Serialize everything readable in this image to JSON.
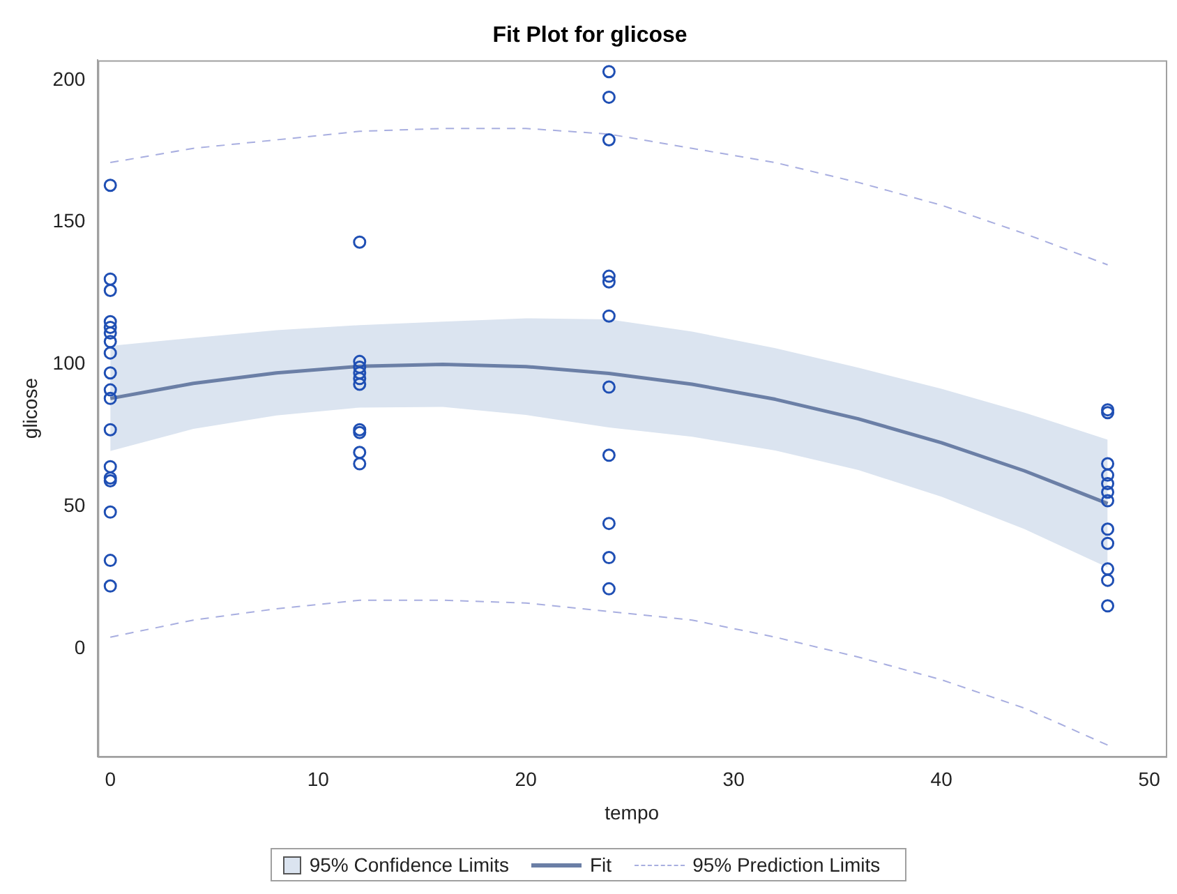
{
  "chart_data": {
    "type": "scatter",
    "title": "Fit Plot for glicose",
    "xlabel": "tempo",
    "ylabel": "glicose",
    "xlim": [
      -0.6,
      50.8
    ],
    "ylim": [
      -38,
      207
    ],
    "xticks": [
      0,
      10,
      20,
      30,
      40,
      50
    ],
    "yticks": [
      0,
      50,
      100,
      150,
      200
    ],
    "grid": false,
    "legend": "bottom",
    "marker": "circle",
    "annotations": [
      "95% Confidence Limits"
    ],
    "series": [
      {
        "type": "line",
        "name": "Fit",
        "color": "#6b7fa6",
        "line_style": "solid",
        "marker": "none",
        "x": [
          0,
          4,
          8,
          12,
          16,
          20,
          24,
          28,
          32,
          36,
          40,
          44,
          48
        ],
        "values": [
          88,
          93.3,
          97,
          99.3,
          100,
          99.2,
          96.8,
          93,
          87.7,
          80.8,
          72.4,
          62.5,
          51
        ],
        "lower": [
          69.5,
          77.3,
          82,
          84.8,
          85,
          82.2,
          77.8,
          74.5,
          69.7,
          62.8,
          53.4,
          42,
          28.5
        ],
        "upper": [
          106.5,
          109.3,
          112,
          113.8,
          115,
          116.2,
          115.8,
          111.5,
          105.7,
          98.8,
          91.4,
          83,
          73.5
        ]
      },
      {
        "type": "line",
        "name": "95% Prediction Limits",
        "color": "#a8aee0",
        "line_style": "dashed",
        "marker": "none",
        "x": [
          0,
          4,
          8,
          12,
          16,
          20,
          24,
          28,
          32,
          36,
          40,
          44,
          48
        ],
        "values": [
          171,
          176,
          179,
          182,
          183,
          183,
          181,
          176,
          171,
          164,
          156,
          146,
          135
        ]
      },
      {
        "type": "line",
        "color": "#a8aee0",
        "line_style": "dashed",
        "marker": "none",
        "x": [
          0,
          4,
          8,
          12,
          16,
          20,
          24,
          28,
          32,
          36,
          40,
          44,
          48
        ],
        "values": [
          4,
          10,
          14,
          17,
          17,
          16,
          13,
          10,
          4,
          -3,
          -11,
          -21,
          -34
        ]
      },
      {
        "color": "#1f4fb4",
        "x": [
          0,
          0,
          0,
          0,
          0,
          0,
          0,
          0,
          0,
          0,
          0,
          0,
          0,
          0,
          0,
          0,
          0,
          0,
          12,
          12,
          12,
          12,
          12,
          12,
          12,
          12,
          12,
          12,
          24,
          24,
          24,
          24,
          24,
          24,
          24,
          24,
          24,
          24,
          24,
          48,
          48,
          48,
          48,
          48,
          48,
          48,
          48,
          48,
          48,
          48,
          48
        ],
        "values": [
          163,
          130,
          126,
          115,
          113,
          111,
          108,
          104,
          97,
          91,
          88,
          77,
          64,
          60,
          59,
          48,
          31,
          22,
          143,
          101,
          99,
          97,
          95,
          93,
          77,
          76,
          69,
          65,
          203,
          194,
          179,
          131,
          129,
          117,
          92,
          68,
          44,
          32,
          21,
          84,
          83,
          65,
          61,
          58,
          55,
          52,
          42,
          37,
          28,
          24,
          15
        ]
      }
    ]
  }
}
